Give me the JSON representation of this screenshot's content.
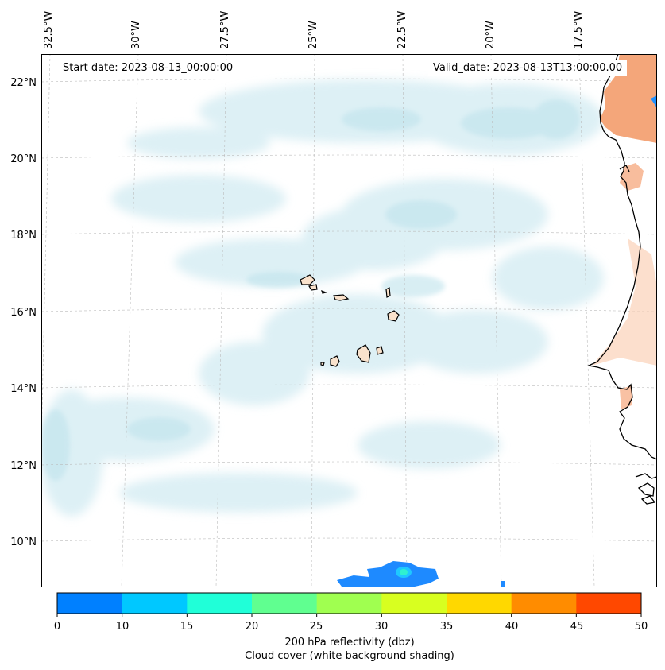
{
  "map": {
    "start_date": "Start date: 2023-08-13_00:00:00",
    "valid_date": "Valid_date: 2023-08-13T13:00:00.00",
    "lon_labels": [
      "32.5°W",
      "30°W",
      "27.5°W",
      "25°W",
      "22.5°W",
      "20°W",
      "17.5°W"
    ],
    "lat_labels": [
      "22°N",
      "20°N",
      "18°N",
      "16°N",
      "14°N",
      "12°N",
      "10°N"
    ],
    "region": "Cabo Verde / West African coast",
    "cloud_color": "#bfe3ec",
    "land_reflectivity_color": "#f4a67a",
    "coast_color": "#000000"
  },
  "colorbar": {
    "ticks": [
      "0",
      "10",
      "15",
      "20",
      "25",
      "30",
      "35",
      "40",
      "45",
      "50"
    ],
    "colors": [
      "#0080ff",
      "#00c8ff",
      "#20ffd8",
      "#60ff90",
      "#a0ff50",
      "#d8ff20",
      "#ffd800",
      "#ff8c00",
      "#ff4800"
    ],
    "label": "200 hPa reflectivity (dbz)",
    "sublabel": "Cloud cover (white background shading)"
  }
}
